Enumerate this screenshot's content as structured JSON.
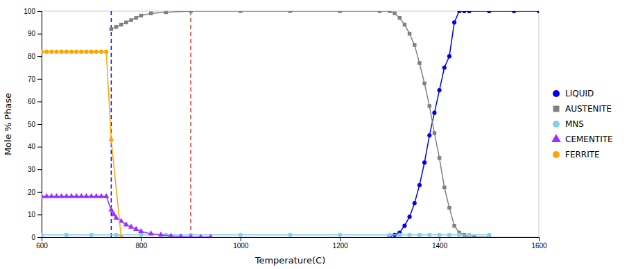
{
  "chart_data": {
    "type": "line",
    "xlabel": "Temperature(C)",
    "ylabel": "Mole % Phase",
    "xlim": [
      600,
      1600
    ],
    "ylim": [
      0,
      100
    ],
    "xticks": [
      600,
      800,
      1000,
      1200,
      1400,
      1600
    ],
    "yticks": [
      0,
      10,
      20,
      30,
      40,
      50,
      60,
      70,
      80,
      90,
      100
    ],
    "grid": false,
    "legend": "right",
    "series": [
      {
        "name": "LIQUID",
        "color": "#0000EE",
        "marker": "circle",
        "x": [
          1300,
          1310,
          1320,
          1330,
          1340,
          1350,
          1360,
          1370,
          1380,
          1390,
          1400,
          1410,
          1420,
          1430,
          1440,
          1450,
          1460,
          1500,
          1550,
          1600
        ],
        "values": [
          0.5,
          1,
          2,
          5,
          9,
          15,
          23,
          33,
          45,
          55,
          65,
          75,
          80,
          95,
          100,
          100,
          100,
          100,
          100,
          100
        ]
      },
      {
        "name": "AUSTENITE",
        "color": "#808080",
        "marker": "square",
        "x": [
          740,
          750,
          760,
          770,
          780,
          790,
          800,
          820,
          850,
          900,
          1000,
          1100,
          1200,
          1280,
          1300,
          1310,
          1320,
          1330,
          1340,
          1350,
          1360,
          1370,
          1380,
          1390,
          1400,
          1410,
          1420,
          1430,
          1440,
          1450,
          1460,
          1470,
          1500
        ],
        "values": [
          92,
          93,
          94,
          95,
          96,
          97,
          98,
          99,
          99.5,
          100,
          100,
          100,
          100,
          100,
          100,
          99,
          97,
          94,
          90,
          85,
          77,
          68,
          58,
          46,
          35,
          22,
          13,
          5,
          2,
          1,
          0,
          0,
          0
        ]
      },
      {
        "name": "MNS",
        "color": "#87CEEB",
        "marker": "circle",
        "x": [
          600,
          650,
          700,
          750,
          800,
          850,
          900,
          1000,
          1100,
          1200,
          1300,
          1320,
          1340,
          1360,
          1380,
          1400,
          1420,
          1440,
          1460,
          1500
        ],
        "values": [
          1,
          1,
          1,
          1,
          1,
          1,
          1,
          1,
          1,
          1,
          1,
          1,
          1,
          1,
          1,
          1,
          1,
          1,
          1,
          1
        ]
      },
      {
        "name": "CEMENTITE",
        "color": "#9B30FF",
        "marker": "triangle",
        "x": [
          600,
          610,
          620,
          630,
          640,
          650,
          660,
          670,
          680,
          690,
          700,
          710,
          720,
          730,
          740,
          745,
          750,
          760,
          770,
          780,
          790,
          800,
          820,
          840,
          860,
          880,
          900,
          920,
          940
        ],
        "values": [
          18,
          18,
          18,
          18,
          18,
          18,
          18,
          18,
          18,
          18,
          18,
          18,
          18,
          18,
          12,
          10,
          8.5,
          7,
          5.5,
          4.5,
          3.5,
          2.5,
          1.5,
          1.0,
          0.5,
          0.2,
          0.0,
          0.0,
          0.0
        ]
      },
      {
        "name": "FERRITE",
        "color": "#FFA500",
        "marker": "circle",
        "x": [
          600,
          610,
          620,
          630,
          640,
          650,
          660,
          670,
          680,
          690,
          700,
          710,
          720,
          730,
          740,
          760
        ],
        "values": [
          82,
          82,
          82,
          82,
          82,
          82,
          82,
          82,
          82,
          82,
          82,
          82,
          82,
          82,
          43,
          0
        ]
      }
    ],
    "vlines": [
      {
        "x": 740,
        "color": "#0000EE",
        "line_style": "dashed"
      },
      {
        "x": 900,
        "color": "#CC3333",
        "line_style": "dashed"
      }
    ]
  }
}
